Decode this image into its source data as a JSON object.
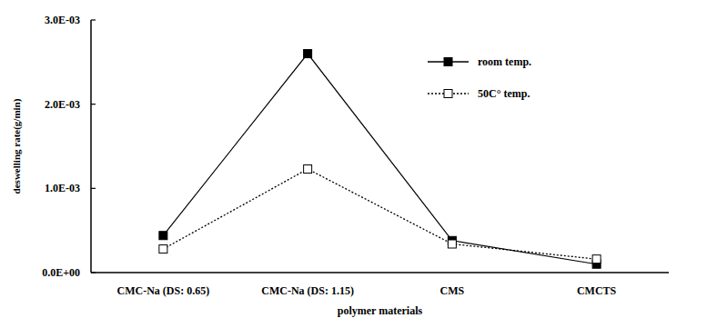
{
  "chart_data": {
    "type": "line",
    "x_label": "polymer materials",
    "y_label": "deswelling rate(g/min)",
    "categories": [
      "CMC-Na (DS: 0.65)",
      "CMC-Na (DS: 1.15)",
      "CMS",
      "CMCTS"
    ],
    "series": [
      {
        "name": "room temp.",
        "color": "#000000",
        "marker": "square",
        "line_style": "solid",
        "values": [
          0.00044,
          0.0026,
          0.00038,
          0.0001
        ]
      },
      {
        "name": "50C° temp.",
        "color": "#000000",
        "marker": "square-open",
        "line_style": "dotted",
        "values": [
          0.00028,
          0.00123,
          0.00034,
          0.00016
        ]
      }
    ],
    "ylim": [
      0,
      0.003
    ],
    "yticks": [
      {
        "value": 0,
        "label": "0.0E+00"
      },
      {
        "value": 0.001,
        "label": "1.0E-03"
      },
      {
        "value": 0.002,
        "label": "2.0E-03"
      },
      {
        "value": 0.003,
        "label": "3.0E-03"
      }
    ],
    "legend": "upper right",
    "grid": false
  }
}
